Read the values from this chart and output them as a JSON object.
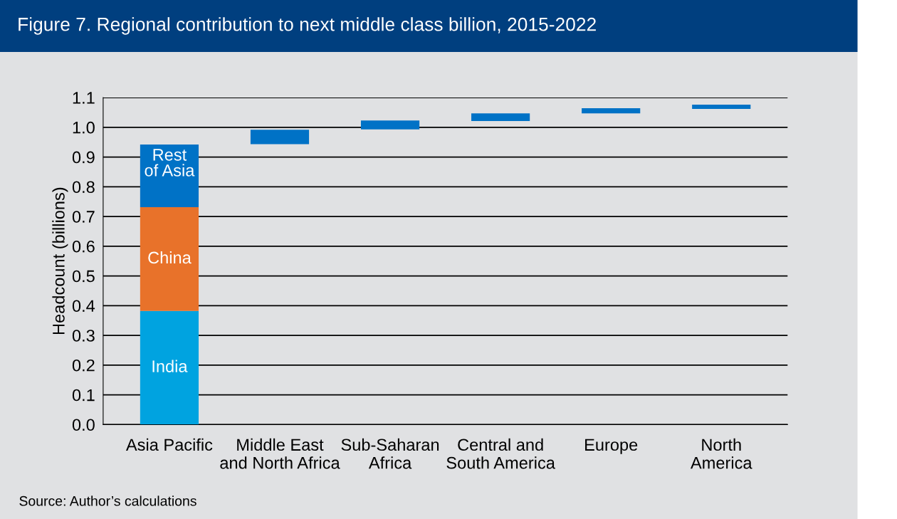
{
  "chart_data": {
    "type": "bar",
    "title": "Figure 7. Regional contribution to next middle class billion, 2015-2022",
    "ylabel": "Headcount (billions)",
    "categories": [
      "Asia Pacific",
      "Middle East\nand North Africa",
      "Sub-Saharan\nAfrica",
      "Central and\nSouth America",
      "Europe",
      "North\nAmerica"
    ],
    "stacked": true,
    "series": [
      {
        "name": "India",
        "color": "#00a3e0",
        "values": [
          0.382,
          null,
          null,
          null,
          null,
          null
        ]
      },
      {
        "name": "China",
        "color": "#e8722a",
        "values": [
          0.349,
          null,
          null,
          null,
          null,
          null
        ]
      },
      {
        "name": "Rest\nof Asia",
        "color": "#0072c6",
        "values": [
          0.211,
          null,
          null,
          null,
          null,
          null
        ]
      },
      {
        "color": "#0072c6",
        "base": [
          null,
          0.943,
          0.993,
          1.021,
          1.047,
          1.062
        ],
        "values": [
          null,
          0.049,
          0.03,
          0.026,
          0.017,
          0.014
        ]
      }
    ],
    "ylim": [
      0,
      1.1
    ],
    "yticks": [
      "0.0",
      0.1,
      0.2,
      0.3,
      0.4,
      0.5,
      0.6,
      0.7,
      0.8,
      0.9,
      "1.0",
      1.1
    ],
    "grid": "y",
    "legend": false,
    "annotations": [
      "Source: Author’s calculations"
    ]
  }
}
